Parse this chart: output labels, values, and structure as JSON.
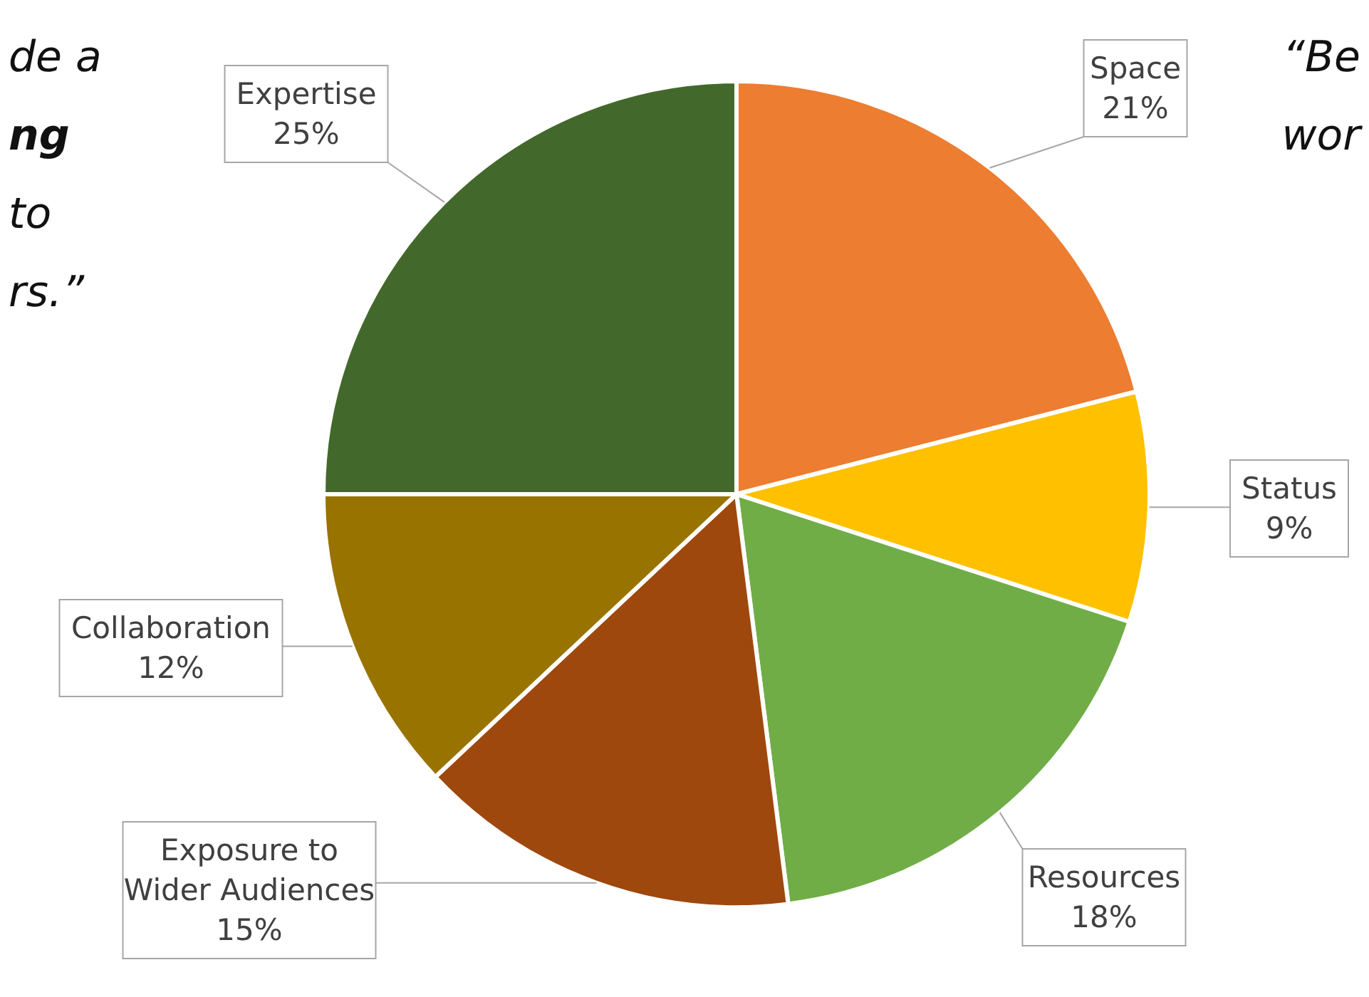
{
  "chart_data": {
    "type": "pie",
    "categories": [
      "Space",
      "Status",
      "Resources",
      "Exposure to Wider Audiences",
      "Collaboration",
      "Expertise"
    ],
    "values": [
      21,
      9,
      18,
      15,
      12,
      25
    ],
    "colors": [
      "#ed7d31",
      "#ffc000",
      "#70ad47",
      "#9e480e",
      "#997300",
      "#43682b"
    ],
    "value_labels": [
      "21%",
      "9%",
      "18%",
      "15%",
      "12%",
      "25%"
    ],
    "annotations": [
      "de a",
      "ng",
      "to",
      "rs.”",
      "“Be",
      "wor"
    ]
  }
}
